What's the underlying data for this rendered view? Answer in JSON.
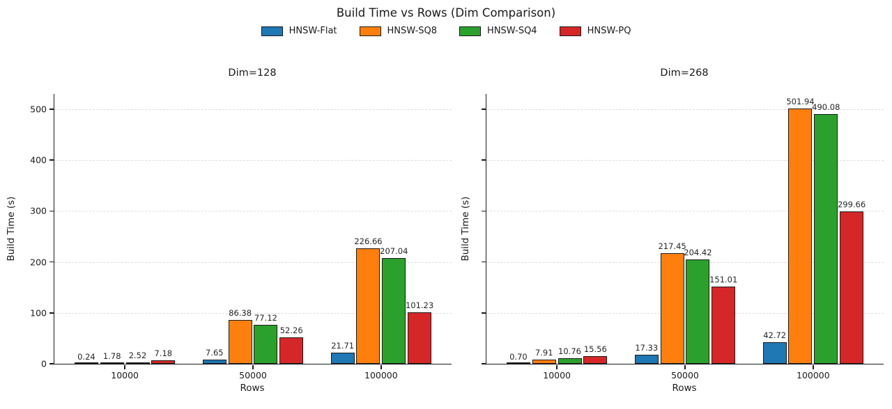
{
  "title": "Build Time vs Rows (Dim Comparison)",
  "background": "#ffffff",
  "legend": {
    "position": "top-center",
    "entries": [
      {
        "label": "HNSW-Flat",
        "color": "#1f77b4"
      },
      {
        "label": "HNSW-SQ8",
        "color": "#ff7f0e"
      },
      {
        "label": "HNSW-SQ4",
        "color": "#2ca02c"
      },
      {
        "label": "HNSW-PQ",
        "color": "#d62728"
      }
    ]
  },
  "chart_data": [
    {
      "type": "bar",
      "title": "Dim=128",
      "xlabel": "Rows",
      "ylabel": "Build Time (s)",
      "categories": [
        "10000",
        "50000",
        "100000"
      ],
      "series": [
        {
          "name": "HNSW-Flat",
          "color": "#1f77b4",
          "values": [
            0.24,
            7.65,
            21.71
          ],
          "labels": [
            "0.24",
            "7.65",
            "21.71"
          ]
        },
        {
          "name": "HNSW-SQ8",
          "color": "#ff7f0e",
          "values": [
            1.78,
            86.38,
            226.66
          ],
          "labels": [
            "1.78",
            "86.38",
            "226.66"
          ]
        },
        {
          "name": "HNSW-SQ4",
          "color": "#2ca02c",
          "values": [
            2.52,
            77.12,
            207.04
          ],
          "labels": [
            "2.52",
            "77.12",
            "207.04"
          ]
        },
        {
          "name": "HNSW-PQ",
          "color": "#d62728",
          "values": [
            7.18,
            52.26,
            101.23
          ],
          "labels": [
            "7.18",
            "52.26",
            "101.23"
          ]
        }
      ],
      "ylim": [
        0,
        530
      ],
      "yticks": [
        0,
        100,
        200,
        300,
        400,
        500
      ],
      "show_ytick_labels": true,
      "grid": true,
      "bar_value_labels": true
    },
    {
      "type": "bar",
      "title": "Dim=268",
      "xlabel": "Rows",
      "ylabel": "Build Time (s)",
      "categories": [
        "10000",
        "50000",
        "100000"
      ],
      "series": [
        {
          "name": "HNSW-Flat",
          "color": "#1f77b4",
          "values": [
            0.7,
            17.33,
            42.72
          ],
          "labels": [
            "0.70",
            "17.33",
            "42.72"
          ]
        },
        {
          "name": "HNSW-SQ8",
          "color": "#ff7f0e",
          "values": [
            7.91,
            217.45,
            501.94
          ],
          "labels": [
            "7.91",
            "217.45",
            "501.94"
          ]
        },
        {
          "name": "HNSW-SQ4",
          "color": "#2ca02c",
          "values": [
            10.76,
            204.42,
            490.08
          ],
          "labels": [
            "10.76",
            "204.42",
            "490.08"
          ]
        },
        {
          "name": "HNSW-PQ",
          "color": "#d62728",
          "values": [
            15.56,
            151.01,
            299.66
          ],
          "labels": [
            "15.56",
            "151.01",
            "299.66"
          ]
        }
      ],
      "ylim": [
        0,
        530
      ],
      "yticks": [
        0,
        100,
        200,
        300,
        400,
        500
      ],
      "show_ytick_labels": false,
      "grid": true,
      "bar_value_labels": true
    }
  ]
}
